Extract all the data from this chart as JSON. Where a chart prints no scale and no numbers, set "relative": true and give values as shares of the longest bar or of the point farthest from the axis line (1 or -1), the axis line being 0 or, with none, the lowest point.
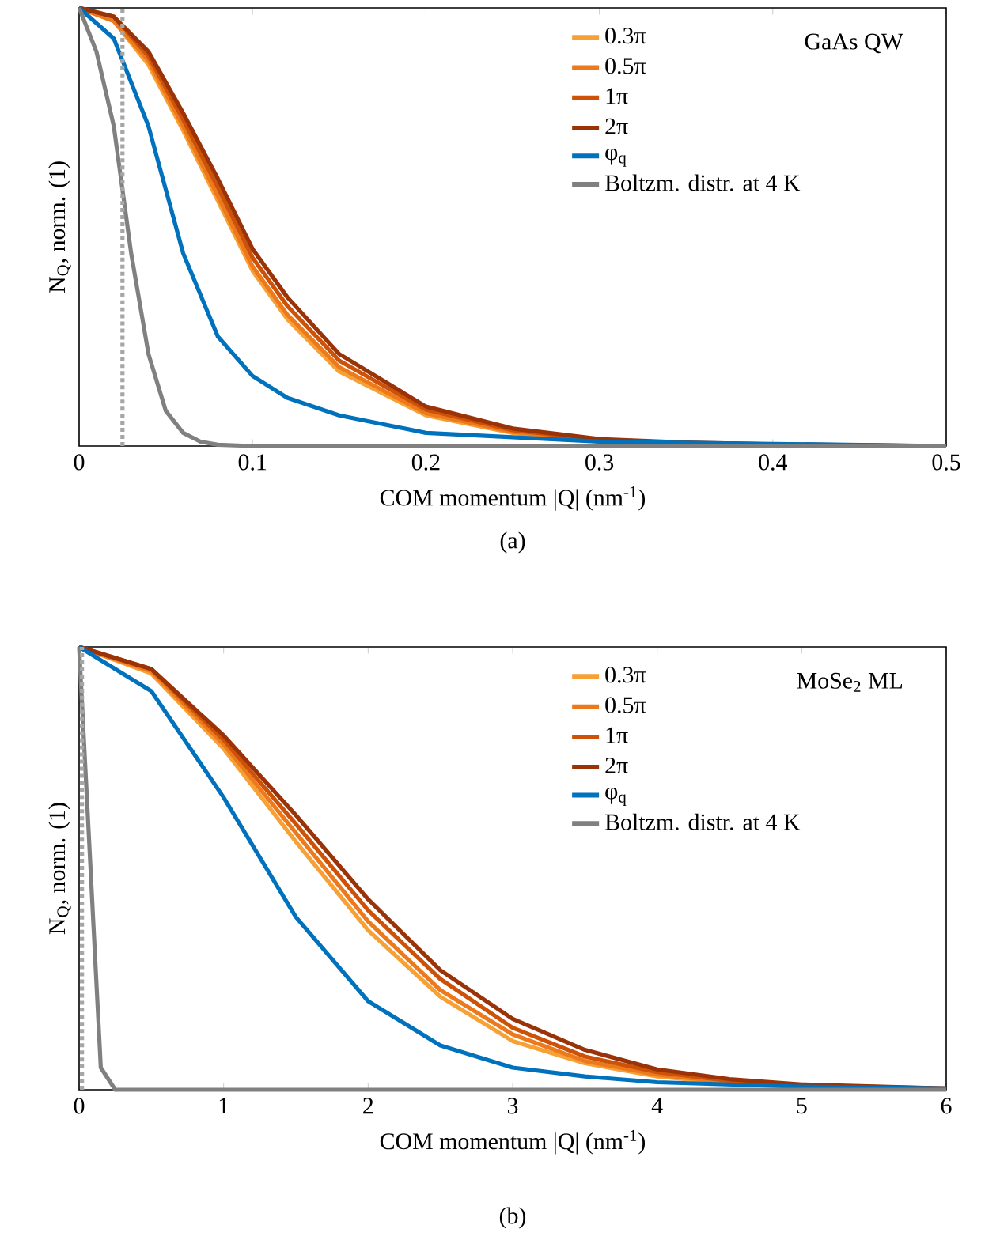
{
  "chart_data": [
    {
      "type": "line",
      "relative": true,
      "xlabel": "COM momentum |Q| (nm$^{-1}$)",
      "ylabel": "N$_{Q}$, norm. (1)",
      "annotations": [
        "GaAs QW",
        "(a)"
      ],
      "legend": "top right",
      "xlim": [
        0,
        0.5
      ],
      "xticks": [
        0,
        0.1,
        0.2,
        0.3,
        0.4,
        0.5
      ],
      "line_style": "solid",
      "ref_lines": [
        {
          "axis": "x",
          "value": 0.025,
          "label": null,
          "color": "#a6a6a6",
          "line_style": "dotted"
        }
      ],
      "series": [
        {
          "name": "0.3π",
          "color": "#f7a035",
          "x": [
            0,
            0.02,
            0.04,
            0.06,
            0.08,
            0.1,
            0.12,
            0.15,
            0.2,
            0.25,
            0.3
          ],
          "values": [
            1,
            0.97,
            0.87,
            0.72,
            0.56,
            0.4,
            0.29,
            0.17,
            0.07,
            0.03,
            0.01
          ]
        },
        {
          "name": "0.5π",
          "color": "#ec7a1c",
          "x": [
            0,
            0.02,
            0.04,
            0.06,
            0.08,
            0.1,
            0.12,
            0.15,
            0.2,
            0.25,
            0.3,
            0.35
          ],
          "values": [
            1,
            0.97,
            0.88,
            0.73,
            0.57,
            0.41,
            0.3,
            0.18,
            0.075,
            0.032,
            0.012,
            0.006
          ]
        },
        {
          "name": "1π",
          "color": "#cd5208",
          "x": [
            0,
            0.02,
            0.04,
            0.06,
            0.08,
            0.1,
            0.12,
            0.15,
            0.2,
            0.25,
            0.3,
            0.35,
            0.4,
            0.5
          ],
          "values": [
            1,
            0.98,
            0.89,
            0.745,
            0.59,
            0.43,
            0.32,
            0.195,
            0.083,
            0.036,
            0.014,
            0.007,
            0.003,
            0
          ]
        },
        {
          "name": "2π",
          "color": "#9a3308",
          "x": [
            0,
            0.02,
            0.04,
            0.06,
            0.08,
            0.1,
            0.12,
            0.15,
            0.2,
            0.25,
            0.3,
            0.35,
            0.4,
            0.5
          ],
          "values": [
            1,
            0.98,
            0.9,
            0.76,
            0.61,
            0.45,
            0.34,
            0.21,
            0.09,
            0.04,
            0.016,
            0.008,
            0.004,
            0
          ]
        },
        {
          "name": "φ$_{q}$",
          "color": "#0072bd",
          "x": [
            0,
            0.02,
            0.04,
            0.06,
            0.08,
            0.1,
            0.12,
            0.15,
            0.2,
            0.25,
            0.3,
            0.4,
            0.5
          ],
          "values": [
            1,
            0.93,
            0.73,
            0.44,
            0.25,
            0.16,
            0.11,
            0.07,
            0.03,
            0.02,
            0.01,
            0.005,
            0
          ]
        },
        {
          "name": "Boltzm. distr. at 4 K",
          "color": "#808080",
          "x": [
            0,
            0.01,
            0.02,
            0.03,
            0.04,
            0.05,
            0.06,
            0.07,
            0.08,
            0.1,
            0.5
          ],
          "values": [
            1,
            0.9,
            0.73,
            0.44,
            0.21,
            0.08,
            0.03,
            0.01,
            0.003,
            0,
            0
          ]
        }
      ]
    },
    {
      "type": "line",
      "relative": true,
      "xlabel": "COM momentum |Q| (nm$^{-1}$)",
      "ylabel": "N$_{Q}$, norm. (1)",
      "annotations": [
        "MoSe$_{2}$ ML",
        "(b)"
      ],
      "legend": "top right",
      "xlim": [
        0,
        6
      ],
      "xticks": [
        0,
        1,
        2,
        3,
        4,
        5,
        6
      ],
      "line_style": "solid",
      "ref_lines": [
        {
          "axis": "x",
          "value": 0.02,
          "label": null,
          "color": "#a6a6a6",
          "line_style": "dotted"
        }
      ],
      "series": [
        {
          "name": "0.3π",
          "color": "#f7a035",
          "x": [
            0,
            0.5,
            1,
            1.5,
            2,
            2.5,
            3,
            3.5,
            4,
            4.5,
            5,
            6
          ],
          "values": [
            1,
            0.94,
            0.77,
            0.56,
            0.36,
            0.21,
            0.11,
            0.06,
            0.03,
            0.015,
            0.007,
            0.002
          ]
        },
        {
          "name": "0.5π",
          "color": "#ec7a1c",
          "x": [
            0,
            0.5,
            1,
            1.5,
            2,
            2.5,
            3,
            3.5,
            4,
            4.5,
            5,
            6
          ],
          "values": [
            1,
            0.945,
            0.78,
            0.58,
            0.38,
            0.225,
            0.125,
            0.065,
            0.034,
            0.017,
            0.008,
            0.002
          ]
        },
        {
          "name": "1π",
          "color": "#cd5208",
          "x": [
            0,
            0.5,
            1,
            1.5,
            2,
            2.5,
            3,
            3.5,
            4,
            4.5,
            5,
            6
          ],
          "values": [
            1,
            0.95,
            0.79,
            0.6,
            0.405,
            0.25,
            0.14,
            0.075,
            0.04,
            0.02,
            0.01,
            0.003
          ]
        },
        {
          "name": "2π",
          "color": "#9a3308",
          "x": [
            0,
            0.5,
            1,
            1.5,
            2,
            2.5,
            3,
            3.5,
            4,
            4.5,
            5,
            6
          ],
          "values": [
            1,
            0.95,
            0.8,
            0.62,
            0.43,
            0.27,
            0.16,
            0.09,
            0.046,
            0.024,
            0.012,
            0.003
          ]
        },
        {
          "name": "φ$_{q}$",
          "color": "#0072bd",
          "x": [
            0,
            0.5,
            1,
            1.5,
            2,
            2.5,
            3,
            3.5,
            4,
            5,
            6
          ],
          "values": [
            1,
            0.9,
            0.66,
            0.39,
            0.2,
            0.1,
            0.05,
            0.03,
            0.017,
            0.007,
            0.003
          ]
        },
        {
          "name": "Boltzm. distr. at 4 K",
          "color": "#808080",
          "x": [
            0,
            0.15,
            0.25,
            6
          ],
          "values": [
            1,
            0.05,
            0,
            0
          ]
        }
      ]
    }
  ]
}
